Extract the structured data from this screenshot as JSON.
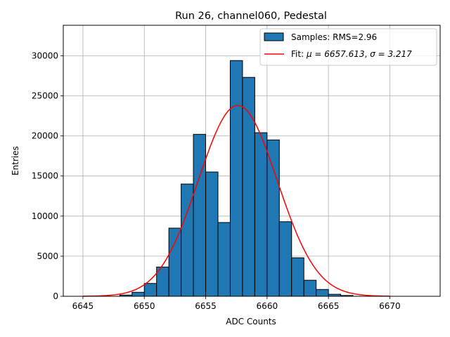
{
  "chart_data": {
    "type": "bar",
    "title": "Run 26, channel060, Pedestal",
    "xlabel": "ADC Counts",
    "ylabel": "Entries",
    "xlim": [
      6643.4,
      6674.1
    ],
    "ylim": [
      0,
      33800
    ],
    "grid": true,
    "legend_position": "top-right",
    "x_ticks": [
      6645,
      6650,
      6655,
      6660,
      6665,
      6670
    ],
    "y_ticks": [
      0,
      5000,
      10000,
      15000,
      20000,
      25000,
      30000
    ],
    "histogram": {
      "name": "Samples: RMS=2.96",
      "color": "#1f77b4",
      "edge_color": "#000000",
      "bin_width": 1,
      "bin_starts": [
        6645,
        6646,
        6647,
        6648,
        6649,
        6650,
        6651,
        6652,
        6653,
        6654,
        6655,
        6656,
        6657,
        6658,
        6659,
        6660,
        6661,
        6662,
        6663,
        6664,
        6665,
        6666,
        6667
      ],
      "values": [
        0,
        0,
        0,
        150,
        500,
        1600,
        3650,
        8500,
        14000,
        20200,
        15500,
        9200,
        29400,
        27300,
        20400,
        19500,
        9300,
        4800,
        2000,
        850,
        250,
        100,
        0
      ]
    },
    "fit": {
      "name_prefix": "Fit: ",
      "mu_label": "μ = 6657.613",
      "sigma_label": "σ = 3.217",
      "color": "#ff0000",
      "mu": 6657.613,
      "sigma": 3.217,
      "amplitude": 23800,
      "x_range": [
        6645,
        6670
      ]
    }
  }
}
